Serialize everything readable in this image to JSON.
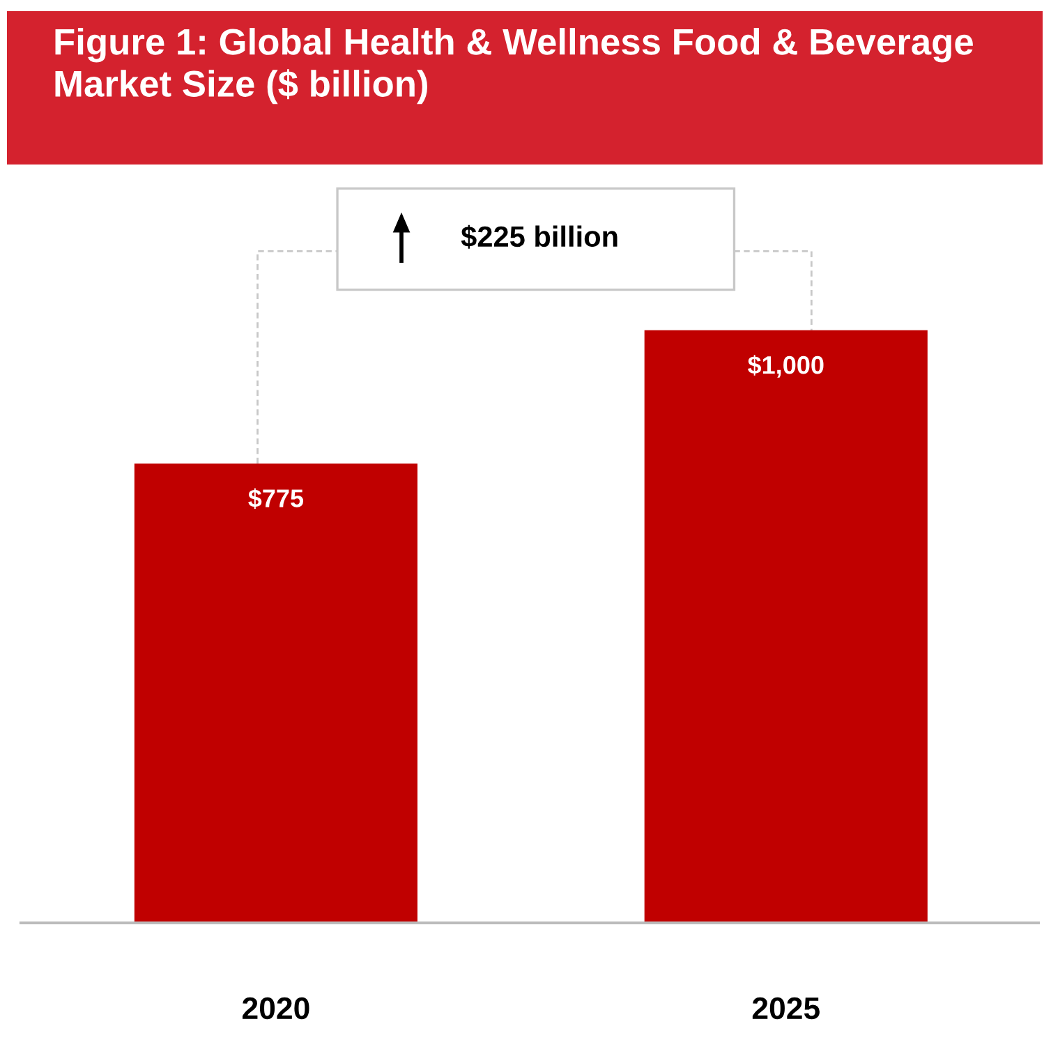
{
  "chart_data": {
    "type": "bar",
    "title": "Figure 1: Global Health & Wellness Food & Beverage Market Size ($ billion)",
    "categories": [
      "2020",
      "2025"
    ],
    "values": [
      775,
      1000
    ],
    "value_labels": [
      "$775",
      "$1,000"
    ],
    "color": "#c00000",
    "annotations": [
      "$225 billion"
    ],
    "grid": false,
    "legend": false
  }
}
